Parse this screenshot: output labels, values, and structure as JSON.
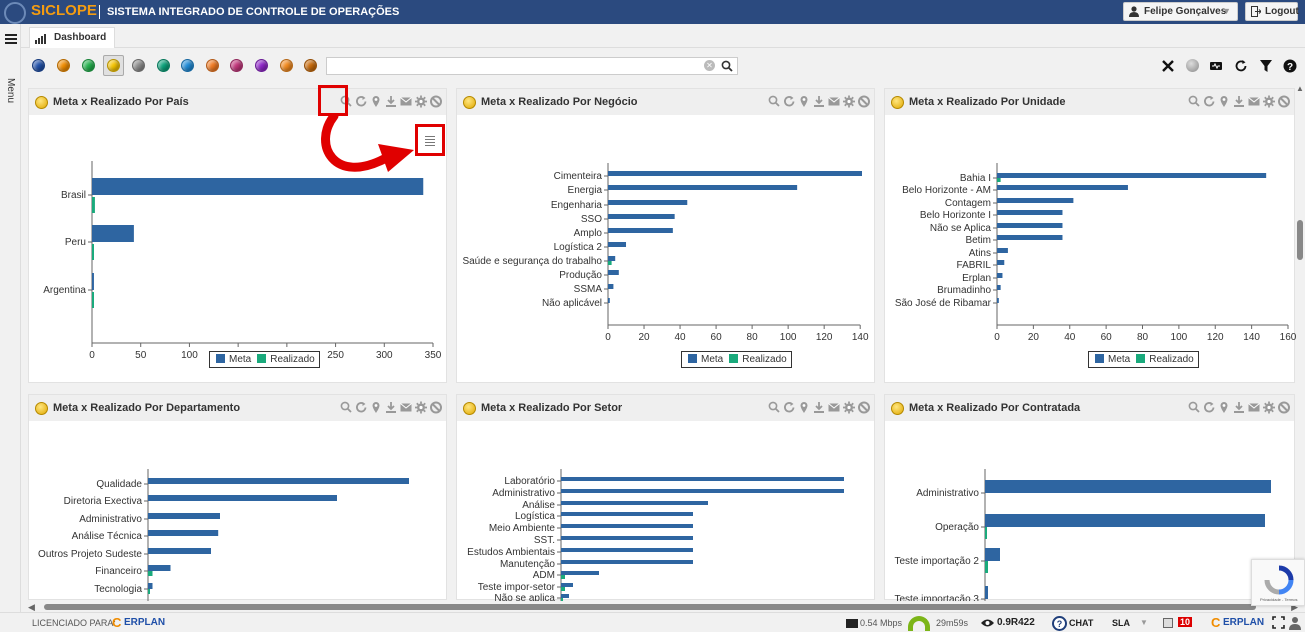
{
  "app": {
    "brand": "SICLOPE",
    "system_title": "SISTEMA INTEGRADO DE CONTROLE DE OPERAÇÕES",
    "user_name": "Felipe Gonçalves",
    "logout_label": "Logout",
    "menu_label": "Menu",
    "tab_label": "Dashboard"
  },
  "toolbar": {
    "search_value": "",
    "status_colors": [
      "#1f4fa8",
      "#f08c00",
      "#22b14c",
      "#f5c400",
      "#8a8a8a",
      "#0aa17a",
      "#1e8ad6",
      "#f07a22",
      "#c2357a",
      "#8e24c8",
      "#f28a1e",
      "#c86a0a"
    ],
    "selected_index": 3
  },
  "legend": {
    "meta": "Meta",
    "realizado": "Realizado",
    "meta_color": "#2e65a1",
    "realizado_color": "#1aaa7c"
  },
  "panels": [
    {
      "title": "Meta x Realizado Por País"
    },
    {
      "title": "Meta x Realizado Por Negócio"
    },
    {
      "title": "Meta x Realizado Por Unidade"
    },
    {
      "title": "Meta x Realizado Por Departamento"
    },
    {
      "title": "Meta x Realizado Por Setor"
    },
    {
      "title": "Meta x Realizado Por Contratada"
    }
  ],
  "chart_data": [
    {
      "type": "bar",
      "orientation": "horizontal",
      "title": "Meta x Realizado Por País",
      "categories": [
        "Brasil",
        "Peru",
        "Argentina"
      ],
      "series": [
        {
          "name": "Meta",
          "values": [
            340,
            43,
            2
          ]
        },
        {
          "name": "Realizado",
          "values": [
            3,
            1,
            1
          ]
        }
      ],
      "xlim": [
        0,
        350
      ],
      "xticks": [
        0,
        50,
        100,
        150,
        200,
        250,
        300,
        350
      ],
      "legend": "bottom"
    },
    {
      "type": "bar",
      "orientation": "horizontal",
      "title": "Meta x Realizado Por Negócio",
      "categories": [
        "Cimenteira",
        "Energia",
        "Engenharia",
        "SSO",
        "Amplo",
        "Logística 2",
        "Saúde e segurança do trabalho",
        "Produção",
        "SSMA",
        "Não aplicável"
      ],
      "series": [
        {
          "name": "Meta",
          "values": [
            141,
            105,
            44,
            37,
            36,
            10,
            4,
            6,
            3,
            1
          ]
        },
        {
          "name": "Realizado",
          "values": [
            0,
            0,
            0,
            0,
            0,
            0,
            2,
            0,
            0,
            0
          ]
        }
      ],
      "xlim": [
        0,
        140
      ],
      "xticks": [
        0,
        20,
        40,
        60,
        80,
        100,
        120,
        140
      ],
      "legend": "bottom"
    },
    {
      "type": "bar",
      "orientation": "horizontal",
      "title": "Meta x Realizado Por Unidade",
      "categories": [
        "Bahia I",
        "Belo Horizonte - AM",
        "Contagem",
        "Belo Horizonte I",
        "Não se Aplica",
        "Betim",
        "Atins",
        "FABRIL",
        "Erplan",
        "Brumadinho",
        "São José de Ribamar"
      ],
      "series": [
        {
          "name": "Meta",
          "values": [
            148,
            72,
            42,
            36,
            36,
            36,
            6,
            4,
            3,
            2,
            1
          ]
        },
        {
          "name": "Realizado",
          "values": [
            2,
            0,
            0,
            0,
            0,
            0,
            0,
            0,
            0,
            0,
            0
          ]
        }
      ],
      "xlim": [
        0,
        160
      ],
      "xticks": [
        0,
        20,
        40,
        60,
        80,
        100,
        120,
        140,
        160
      ],
      "legend": "bottom"
    },
    {
      "type": "bar",
      "orientation": "horizontal",
      "title": "Meta x Realizado Por Departamento",
      "categories": [
        "Qualidade",
        "Diretoria Exectiva",
        "Administrativo",
        "Análise Técnica",
        "Outros Projeto Sudeste",
        "Financeiro",
        "Tecnologia"
      ],
      "series": [
        {
          "name": "Meta",
          "values": [
            290,
            210,
            80,
            78,
            70,
            25,
            5
          ]
        },
        {
          "name": "Realizado",
          "values": [
            0,
            0,
            0,
            0,
            0,
            5,
            2
          ]
        }
      ]
    },
    {
      "type": "bar",
      "orientation": "horizontal",
      "title": "Meta x Realizado Por Setor",
      "categories": [
        "Laboratório",
        "Administrativo",
        "Análise",
        "Logística",
        "Meio Ambiente",
        "SST.",
        "Estudos Ambientais",
        "Manutenção",
        "ADM",
        "Teste impor-setor",
        "Não se aplica"
      ],
      "series": [
        {
          "name": "Meta",
          "values": [
            283,
            283,
            147,
            132,
            132,
            132,
            132,
            132,
            38,
            12,
            8
          ]
        },
        {
          "name": "Realizado",
          "values": [
            0,
            0,
            0,
            0,
            0,
            0,
            0,
            0,
            4,
            4,
            2
          ]
        }
      ]
    },
    {
      "type": "bar",
      "orientation": "horizontal",
      "title": "Meta x Realizado Por Contratada",
      "categories": [
        "Administrativo",
        "Operação",
        "Teste importação 2",
        "Teste importação 3"
      ],
      "series": [
        {
          "name": "Meta",
          "values": [
            286,
            280,
            15,
            3
          ]
        },
        {
          "name": "Realizado",
          "values": [
            0,
            1,
            3,
            0
          ]
        }
      ]
    }
  ],
  "footer": {
    "licensed_label": "LICENCIADO PARA:",
    "erplan_label": "ERPLAN",
    "speed": "0.54 Mbps",
    "uptime": "29m59s",
    "version": "0.9R422",
    "chat": "CHAT",
    "sla": "SLA",
    "notif_count": "10",
    "erplan_label2": "ERPLAN"
  },
  "recaptcha_text": "Privacidade - Termos"
}
